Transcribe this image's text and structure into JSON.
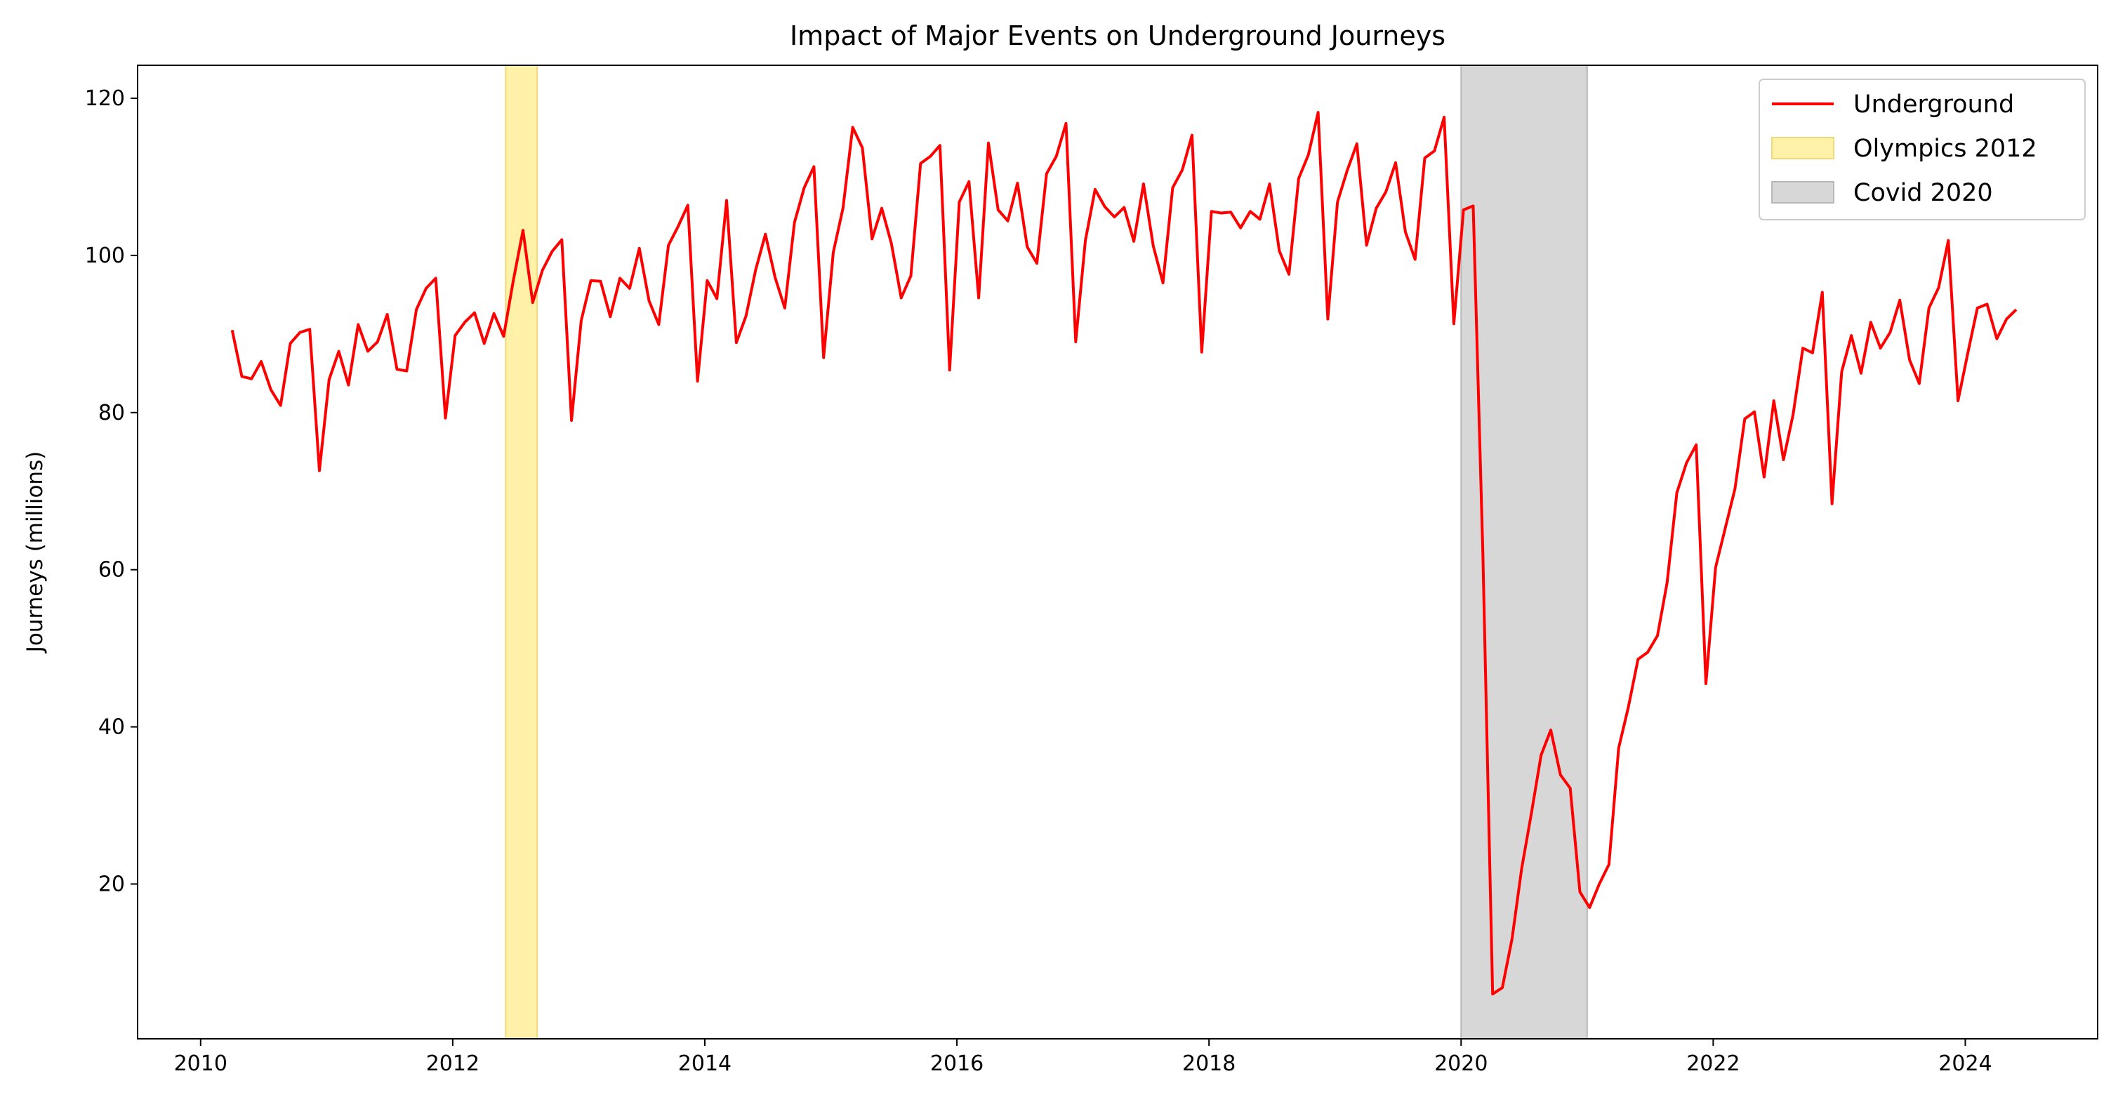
{
  "chart_data": {
    "type": "line",
    "title": "Impact of Major Events on Underground Journeys",
    "xlabel": "",
    "ylabel": "Journeys (millions)",
    "xlim": [
      2009.5,
      2025.05
    ],
    "ylim": [
      0.3,
      124.2
    ],
    "xticks": [
      2010,
      2012,
      2014,
      2016,
      2018,
      2020,
      2022,
      2024
    ],
    "yticks": [
      20,
      40,
      60,
      80,
      100,
      120
    ],
    "grid": false,
    "legend_position": "top-right",
    "colors": {
      "line": "#ff0000",
      "olympics": "#fff2a8",
      "olympics_edge": "#f1d97a",
      "covid": "#d7d7d7",
      "covid_edge": "#b8b8b8"
    },
    "series": [
      {
        "name": "Underground",
        "x_start": 2010.25,
        "x_step": 0.076923,
        "values": [
          90.5,
          84.6,
          84.3,
          86.5,
          82.9,
          80.9,
          88.8,
          90.2,
          90.6,
          72.6,
          84.2,
          87.8,
          83.5,
          91.2,
          87.8,
          89,
          92.5,
          85.5,
          85.3,
          93.1,
          95.8,
          97.1,
          79.3,
          89.8,
          91.5,
          92.7,
          88.8,
          92.6,
          89.7,
          96.8,
          103.2,
          94,
          98.1,
          100.5,
          102,
          79,
          91.7,
          96.8,
          96.7,
          92.2,
          97.1,
          95.8,
          100.9,
          94.2,
          91.2,
          101.3,
          103.7,
          106.4,
          84,
          96.8,
          94.5,
          107,
          88.9,
          92.3,
          98.2,
          102.7,
          97.2,
          93.3,
          104.2,
          108.6,
          111.3,
          87,
          100.4,
          106,
          116.3,
          113.7,
          102.1,
          106,
          101.5,
          94.6,
          97.4,
          111.7,
          112.6,
          114,
          85.4,
          106.8,
          109.4,
          94.6,
          114.3,
          105.8,
          104.4,
          109.2,
          101.1,
          99,
          110.4,
          112.6,
          116.8,
          89,
          101.9,
          108.4,
          106.2,
          104.9,
          106.1,
          101.8,
          109.1,
          101.2,
          96.5,
          108.6,
          110.9,
          115.3,
          87.7,
          105.6,
          105.4,
          105.5,
          103.5,
          105.6,
          104.6,
          109.1,
          100.6,
          97.6,
          109.8,
          112.8,
          118.2,
          91.9,
          106.8,
          110.8,
          114.2,
          101.3,
          106,
          108.1,
          111.8,
          103,
          99.5,
          112.4,
          113.3,
          117.6,
          91.3,
          105.8,
          106.3,
          62,
          6,
          6.8,
          13,
          22,
          29,
          36.4,
          39.6,
          33.9,
          32.2,
          19,
          17,
          20,
          22.5,
          37.3,
          42.5,
          48.6,
          49.5,
          51.6,
          58.4,
          69.8,
          73.6,
          75.9,
          45.5,
          60.3,
          65.3,
          70.3,
          79.2,
          80.1,
          71.8,
          81.5,
          74,
          79.8,
          88.2,
          87.6,
          95.3,
          68.4,
          85.2,
          89.8,
          85,
          91.5,
          88.2,
          90.2,
          94.3,
          86.7,
          83.7,
          93.3,
          95.9,
          101.9,
          81.5,
          87.5,
          93.3,
          93.8,
          89.4,
          91.9,
          93.1
        ]
      }
    ],
    "bands": [
      {
        "name": "Olympics 2012",
        "x_start": 2012.42,
        "x_end": 2012.67
      },
      {
        "name": "Covid 2020",
        "x_start": 2020.0,
        "x_end": 2021.0
      }
    ]
  }
}
